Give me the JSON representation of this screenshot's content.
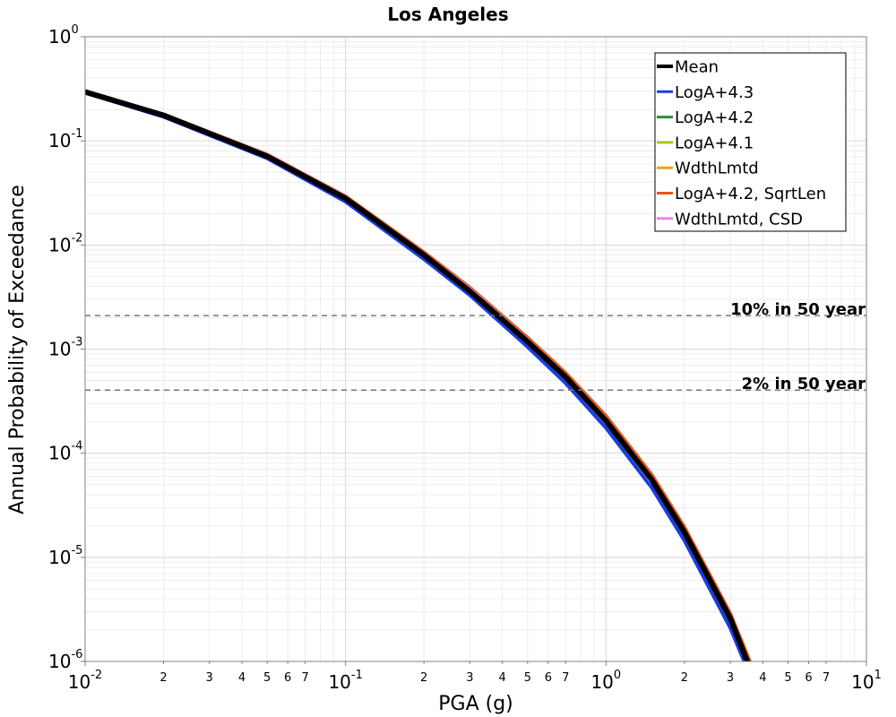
{
  "chart_data": {
    "type": "line",
    "title": "Los Angeles",
    "xlabel": "PGA (g)",
    "ylabel": "Annual Probability of Exceedance",
    "xscale": "log",
    "yscale": "log",
    "xlim": [
      0.01,
      10
    ],
    "ylim": [
      1e-06,
      1
    ],
    "grid": true,
    "legend_position": "top-right",
    "x_major_ticks": [
      {
        "value": 0.01,
        "base": "10",
        "exp": "-2"
      },
      {
        "value": 0.1,
        "base": "10",
        "exp": "-1"
      },
      {
        "value": 1,
        "base": "10",
        "exp": "0"
      },
      {
        "value": 10,
        "base": "10",
        "exp": "1"
      }
    ],
    "x_minor_tick_labels": [
      {
        "value": 0.02,
        "label": "2"
      },
      {
        "value": 0.03,
        "label": "3"
      },
      {
        "value": 0.04,
        "label": "4"
      },
      {
        "value": 0.05,
        "label": "5"
      },
      {
        "value": 0.06,
        "label": "6"
      },
      {
        "value": 0.07,
        "label": "7"
      },
      {
        "value": 0.2,
        "label": "2"
      },
      {
        "value": 0.3,
        "label": "3"
      },
      {
        "value": 0.4,
        "label": "4"
      },
      {
        "value": 0.5,
        "label": "5"
      },
      {
        "value": 0.6,
        "label": "6"
      },
      {
        "value": 0.7,
        "label": "7"
      },
      {
        "value": 2,
        "label": "2"
      },
      {
        "value": 3,
        "label": "3"
      },
      {
        "value": 4,
        "label": "4"
      },
      {
        "value": 5,
        "label": "5"
      },
      {
        "value": 6,
        "label": "6"
      },
      {
        "value": 7,
        "label": "7"
      }
    ],
    "y_major_ticks": [
      {
        "value": 1,
        "base": "10",
        "exp": "0"
      },
      {
        "value": 0.1,
        "base": "10",
        "exp": "-1"
      },
      {
        "value": 0.01,
        "base": "10",
        "exp": "-2"
      },
      {
        "value": 0.001,
        "base": "10",
        "exp": "-3"
      },
      {
        "value": 0.0001,
        "base": "10",
        "exp": "-4"
      },
      {
        "value": 1e-05,
        "base": "10",
        "exp": "-5"
      },
      {
        "value": 1e-06,
        "base": "10",
        "exp": "-6"
      }
    ],
    "reference_lines": [
      {
        "label": "10% in 50 year",
        "y": 0.0021
      },
      {
        "label": "2% in 50 year",
        "y": 0.000404
      }
    ],
    "series": [
      {
        "name": "LogA+4.3",
        "color": "#1a3de0",
        "width": 4,
        "x": [
          0.01,
          0.02,
          0.05,
          0.1,
          0.2,
          0.3,
          0.5,
          0.7,
          1.0,
          1.5,
          2.0,
          3.0,
          3.5
        ],
        "y": [
          0.29,
          0.17,
          0.068,
          0.026,
          0.0073,
          0.0033,
          0.00105,
          0.00047,
          0.000175,
          4.65e-05,
          1.45e-05,
          2.1e-06,
          8.3e-07
        ]
      },
      {
        "name": "LogA+4.2",
        "color": "#2e8b3e",
        "width": 4,
        "x": [
          0.01,
          0.02,
          0.05,
          0.1,
          0.2,
          0.3,
          0.5,
          0.7,
          1.0,
          1.5,
          2.0,
          3.0,
          3.6
        ],
        "y": [
          0.295,
          0.175,
          0.071,
          0.0278,
          0.0079,
          0.0036,
          0.00118,
          0.00054,
          0.000205,
          5.55e-05,
          1.75e-05,
          2.6e-06,
          8.5e-07
        ]
      },
      {
        "name": "LogA+4.1",
        "color": "#b5c21a",
        "width": 4,
        "x": [
          0.01,
          0.02,
          0.05,
          0.1,
          0.2,
          0.3,
          0.5,
          0.7,
          1.0,
          1.5,
          2.0,
          3.0,
          3.6
        ],
        "y": [
          0.298,
          0.177,
          0.072,
          0.0283,
          0.0081,
          0.0037,
          0.00121,
          0.00055,
          0.000209,
          5.65e-05,
          1.78e-05,
          2.7e-06,
          8.8e-07
        ]
      },
      {
        "name": "WdthLmtd",
        "color": "#e8a31c",
        "width": 4,
        "x": [
          0.01,
          0.02,
          0.05,
          0.1,
          0.2,
          0.3,
          0.5,
          0.7,
          1.0,
          1.5,
          2.0,
          3.0,
          3.6
        ],
        "y": [
          0.3,
          0.178,
          0.073,
          0.0288,
          0.0083,
          0.0038,
          0.00125,
          0.00057,
          0.000217,
          5.85e-05,
          1.83e-05,
          2.7e-06,
          8.7e-07
        ]
      },
      {
        "name": "LogA+4.2, SqrtLen",
        "color": "#e8551c",
        "width": 4,
        "x": [
          0.01,
          0.02,
          0.05,
          0.1,
          0.2,
          0.3,
          0.5,
          0.7,
          1.0,
          1.5,
          2.0,
          3.0,
          3.7
        ],
        "y": [
          0.302,
          0.18,
          0.074,
          0.0293,
          0.0085,
          0.0039,
          0.00129,
          0.00059,
          0.000228,
          6.2e-05,
          1.95e-05,
          2.9e-06,
          8e-07
        ]
      },
      {
        "name": "WdthLmtd, CSD",
        "color": "#ee82ee",
        "width": 3,
        "x": [
          0.01,
          0.02,
          0.05,
          0.1,
          0.2,
          0.3,
          0.5,
          0.7,
          1.0,
          1.5,
          2.0,
          3.0,
          3.6
        ],
        "y": [
          0.305,
          0.181,
          0.074,
          0.029,
          0.0083,
          0.0038,
          0.00124,
          0.00056,
          0.000213,
          5.75e-05,
          1.8e-05,
          2.7e-06,
          8.6e-07
        ]
      },
      {
        "name": "Mean",
        "color": "#000000",
        "width": 6,
        "x": [
          0.01,
          0.02,
          0.05,
          0.1,
          0.2,
          0.3,
          0.5,
          0.7,
          1.0,
          1.5,
          2.0,
          3.0,
          3.5
        ],
        "y": [
          0.295,
          0.176,
          0.071,
          0.028,
          0.008,
          0.0036,
          0.00118,
          0.00054,
          0.000205,
          5.55e-05,
          1.75e-05,
          2.6e-06,
          9.8e-07
        ]
      }
    ],
    "legend_order": [
      "Mean",
      "LogA+4.3",
      "LogA+4.2",
      "LogA+4.1",
      "WdthLmtd",
      "LogA+4.2, SqrtLen",
      "WdthLmtd, CSD"
    ]
  }
}
